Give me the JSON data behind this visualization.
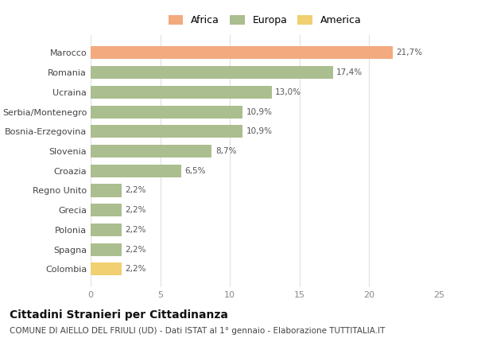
{
  "categories": [
    "Marocco",
    "Romania",
    "Ucraina",
    "Serbia/Montenegro",
    "Bosnia-Erzegovina",
    "Slovenia",
    "Croazia",
    "Regno Unito",
    "Grecia",
    "Polonia",
    "Spagna",
    "Colombia"
  ],
  "values": [
    21.7,
    17.4,
    13.0,
    10.9,
    10.9,
    8.7,
    6.5,
    2.2,
    2.2,
    2.2,
    2.2,
    2.2
  ],
  "labels": [
    "21,7%",
    "17,4%",
    "13,0%",
    "10,9%",
    "10,9%",
    "8,7%",
    "6,5%",
    "2,2%",
    "2,2%",
    "2,2%",
    "2,2%",
    "2,2%"
  ],
  "colors": [
    "#F2AA7E",
    "#ABBE8F",
    "#ABBE8F",
    "#ABBE8F",
    "#ABBE8F",
    "#ABBE8F",
    "#ABBE8F",
    "#ABBE8F",
    "#ABBE8F",
    "#ABBE8F",
    "#ABBE8F",
    "#F0D070"
  ],
  "legend_labels": [
    "Africa",
    "Europa",
    "America"
  ],
  "legend_colors": [
    "#F2AA7E",
    "#ABBE8F",
    "#F0D070"
  ],
  "title": "Cittadini Stranieri per Cittadinanza",
  "subtitle": "COMUNE DI AIELLO DEL FRIULI (UD) - Dati ISTAT al 1° gennaio - Elaborazione TUTTITALIA.IT",
  "xlim": [
    0,
    25
  ],
  "xticks": [
    0,
    5,
    10,
    15,
    20,
    25
  ],
  "background_color": "#ffffff",
  "grid_color": "#e0e0e0",
  "bar_height": 0.65,
  "title_fontsize": 10,
  "subtitle_fontsize": 7.5,
  "label_fontsize": 7.5,
  "tick_fontsize": 8,
  "legend_fontsize": 9
}
